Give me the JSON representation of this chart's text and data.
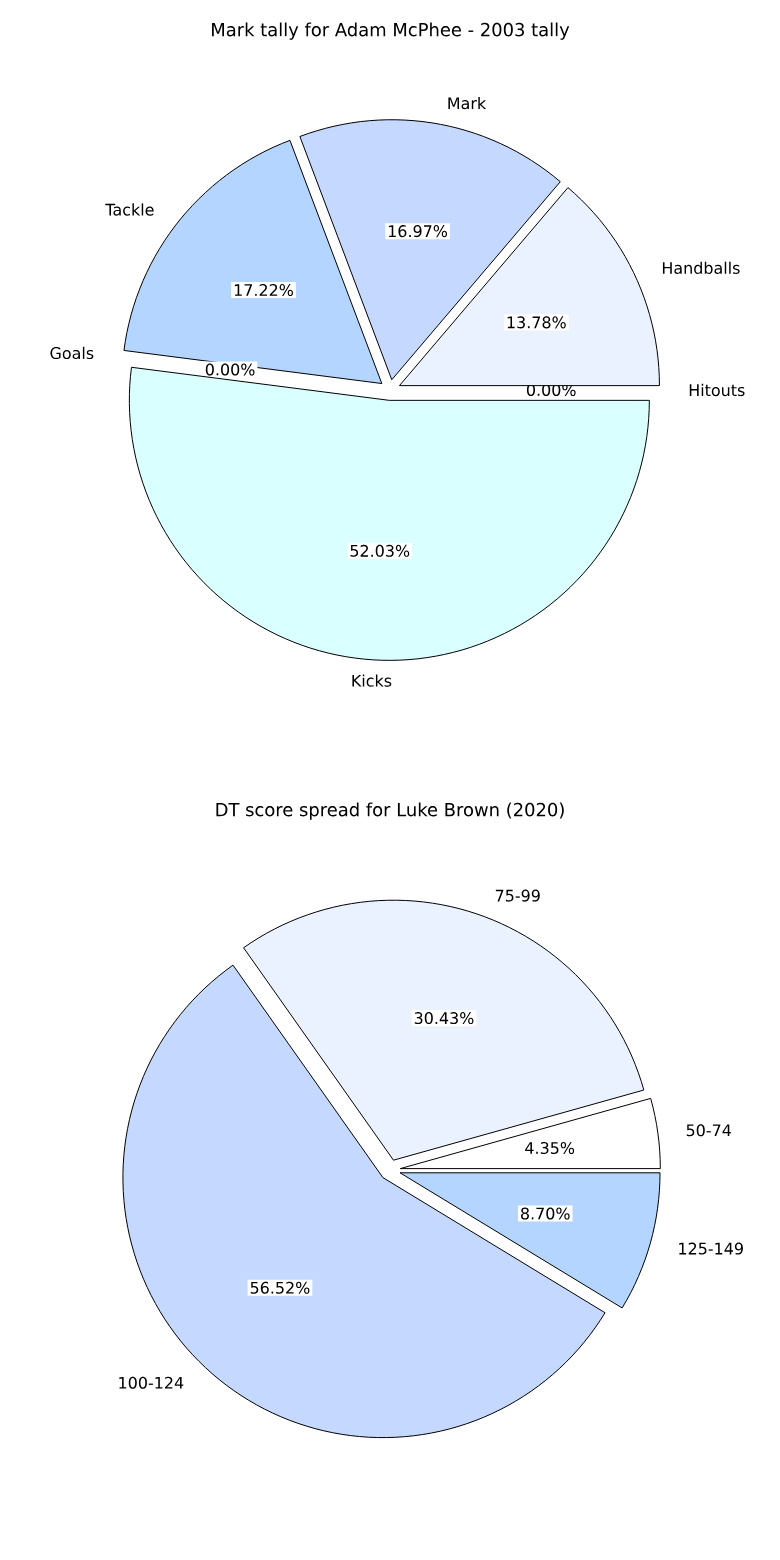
{
  "chart_data": [
    {
      "type": "pie",
      "title": "Mark tally for Adam McPhee - 2003 tally",
      "categories": [
        "Hitouts",
        "Handballs",
        "Mark",
        "Tackle",
        "Goals",
        "Kicks"
      ],
      "values": [
        0.0,
        13.78,
        16.97,
        17.22,
        0.0,
        52.03
      ],
      "colors": [
        "#d0d0d0",
        "#eaf1ff",
        "#c5d8ff",
        "#b3d5ff",
        "#ffffff",
        "#d9ffff"
      ],
      "value_labels": [
        "0.00%",
        "13.78%",
        "16.97%",
        "17.22%",
        "0.00%",
        "52.03%"
      ]
    },
    {
      "type": "pie",
      "title": "DT score spread for Luke Brown (2020)",
      "categories": [
        "50-74",
        "75-99",
        "100-124",
        "125-149"
      ],
      "values": [
        4.35,
        30.43,
        56.52,
        8.7
      ],
      "colors": [
        "#ffffff",
        "#eaf1ff",
        "#c5d8ff",
        "#b3d5ff"
      ],
      "value_labels": [
        "4.35%",
        "30.43%",
        "56.52%",
        "8.70%"
      ]
    }
  ]
}
